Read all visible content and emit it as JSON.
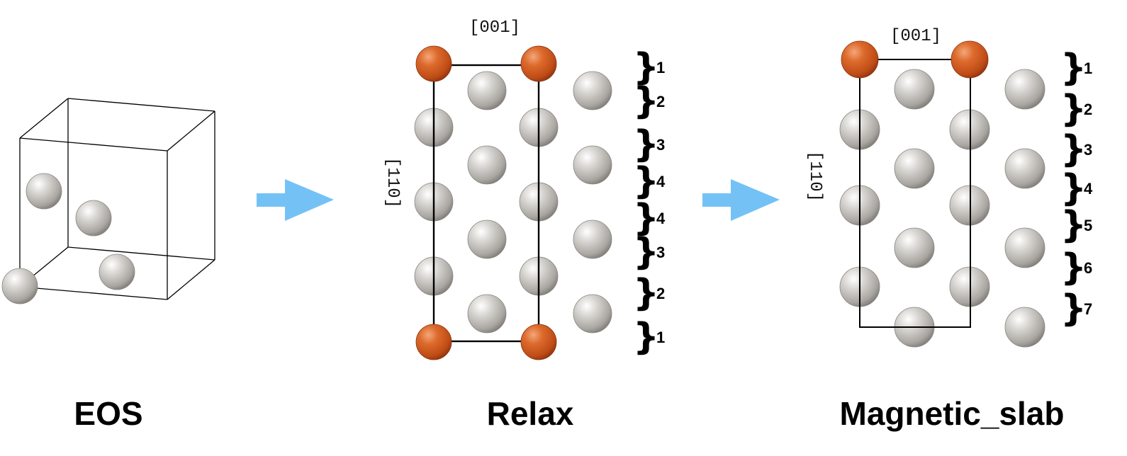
{
  "colors": {
    "atom_gray": "#b8b5b0",
    "atom_orange": "#d2561f",
    "arrow": "#74c2f5",
    "line": "#000000"
  },
  "stages": {
    "eos": {
      "label": "EOS"
    },
    "relax": {
      "label": "Relax",
      "direction_top": "[001]",
      "direction_side": "[110]",
      "layers": [
        "1",
        "2",
        "3",
        "4",
        "4",
        "3",
        "2",
        "1"
      ]
    },
    "magnetic": {
      "label": "Magnetic_slab",
      "direction_top": "[001]",
      "direction_side": "[110]",
      "layers": [
        "1",
        "2",
        "3",
        "4",
        "5",
        "6",
        "7"
      ]
    }
  },
  "arrows": [
    {
      "from": "EOS",
      "to": "Relax",
      "icon": "right-arrow-icon"
    },
    {
      "from": "Relax",
      "to": "Magnetic_slab",
      "icon": "right-arrow-icon"
    }
  ]
}
